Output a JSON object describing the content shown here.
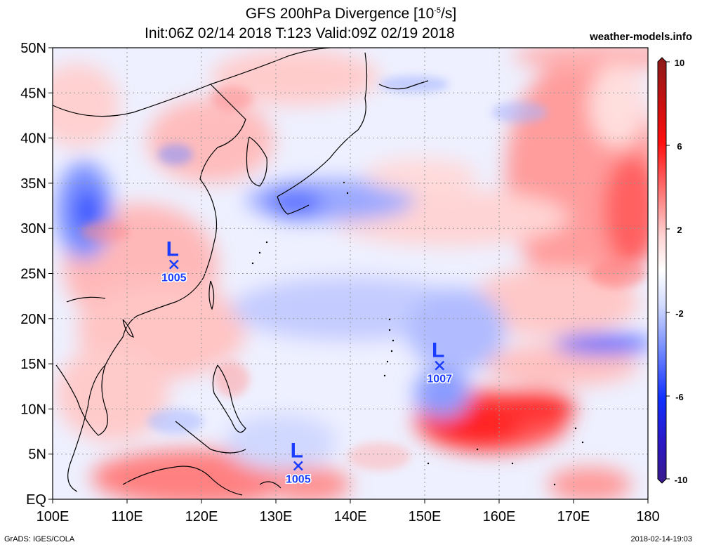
{
  "title": "GFS 200hPa Divergence [10",
  "title_sup": "-5",
  "title_tail": "/s]",
  "subtitle": "Init:06Z 02/14 2018 T:123 Valid:09Z 02/19 2018",
  "site": "weather-models.info",
  "footer_left": "GrADS: IGES/COLA",
  "footer_right": "2018-02-14-19:03",
  "lat_labels": [
    "50N",
    "45N",
    "40N",
    "35N",
    "30N",
    "25N",
    "20N",
    "15N",
    "10N",
    "5N",
    "EQ"
  ],
  "lon_labels": [
    "100E",
    "110E",
    "120E",
    "130E",
    "140E",
    "150E",
    "160E",
    "170E",
    "180"
  ],
  "colorbar_labels": [
    "10",
    "6",
    "2",
    "-2",
    "-6",
    "-10"
  ],
  "colors": {
    "neg_strong": "#3a1a8a",
    "neg": "#1030ff",
    "neg_light": "#c8d4ff",
    "pos_light": "#ffd0d0",
    "pos": "#ff1010",
    "pos_strong": "#8b1a1a"
  },
  "lows": [
    {
      "name": "low-1005-china",
      "letter": "L",
      "value": "1005",
      "lon": 116.3,
      "lat": 26.0
    },
    {
      "name": "low-1007-pacific",
      "letter": "L",
      "value": "1007",
      "lon": 152.0,
      "lat": 14.8
    },
    {
      "name": "low-1005-south",
      "letter": "L",
      "value": "1005",
      "lon": 133.0,
      "lat": 3.7
    }
  ]
}
